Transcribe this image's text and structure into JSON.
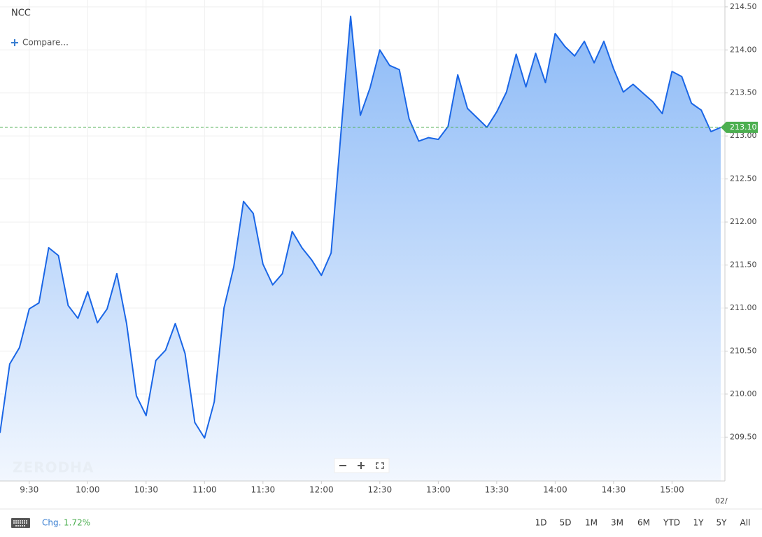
{
  "chart_data": {
    "type": "area",
    "title": "NCC",
    "compare_label": "Compare...",
    "watermark": "ZERODHA",
    "color": "#1a66e6",
    "categories": [
      null,
      null,
      null,
      "9:30",
      null,
      null,
      null,
      null,
      null,
      "10:00",
      null,
      null,
      null,
      null,
      null,
      "10:30",
      null,
      null,
      null,
      null,
      null,
      "11:00",
      null,
      null,
      null,
      null,
      null,
      "11:30",
      null,
      null,
      null,
      null,
      null,
      "12:00",
      null,
      null,
      null,
      null,
      null,
      "12:30",
      null,
      null,
      null,
      null,
      null,
      "13:00",
      null,
      null,
      null,
      null,
      null,
      "13:30",
      null,
      null,
      null,
      null,
      null,
      "14:00",
      null,
      null,
      null,
      null,
      null,
      "14:30",
      null,
      null,
      null,
      null,
      null,
      "15:00",
      null,
      null,
      null,
      null,
      null
    ],
    "values": [
      209.55,
      210.35,
      210.54,
      210.99,
      211.06,
      211.7,
      211.61,
      211.03,
      210.88,
      211.19,
      210.83,
      210.99,
      211.4,
      210.82,
      209.98,
      209.75,
      210.39,
      210.51,
      210.82,
      210.47,
      209.67,
      209.49,
      209.91,
      211.0,
      211.48,
      212.24,
      212.1,
      211.51,
      211.27,
      211.4,
      211.89,
      211.7,
      211.56,
      211.38,
      211.64,
      213.03,
      214.39,
      213.24,
      213.56,
      214.0,
      213.82,
      213.77,
      213.2,
      212.94,
      212.98,
      212.96,
      213.11,
      213.71,
      213.32,
      213.21,
      213.1,
      213.28,
      213.51,
      213.95,
      213.57,
      213.96,
      213.62,
      214.19,
      214.04,
      213.93,
      214.1,
      213.85,
      214.1,
      213.78,
      213.51,
      213.6,
      213.5,
      213.4,
      213.26,
      213.75,
      213.69,
      213.38,
      213.3,
      213.05,
      213.1
    ],
    "ylim": [
      208.99,
      214.58
    ],
    "yticks": [
      {
        "value": 209.5,
        "label": "209.50"
      },
      {
        "value": 210,
        "label": "210.00"
      },
      {
        "value": 210.5,
        "label": "210.50"
      },
      {
        "value": 211,
        "label": "211.00"
      },
      {
        "value": 211.5,
        "label": "211.50"
      },
      {
        "value": 212,
        "label": "212.00"
      },
      {
        "value": 212.5,
        "label": "212.50"
      },
      {
        "value": 213,
        "label": "213.00"
      },
      {
        "value": 213.5,
        "label": "213.50"
      },
      {
        "value": 214,
        "label": "214.00"
      },
      {
        "value": 214.5,
        "label": "214.50"
      }
    ],
    "last_price": {
      "value": 213.1,
      "label": "213.10",
      "color": "#4caf50"
    },
    "date_label": "02/",
    "grid": true,
    "change": {
      "label": "Chg.",
      "value": 1.72,
      "value_label": "1.72%"
    },
    "ranges": [
      "1D",
      "5D",
      "1M",
      "3M",
      "6M",
      "YTD",
      "1Y",
      "5Y",
      "All"
    ]
  }
}
